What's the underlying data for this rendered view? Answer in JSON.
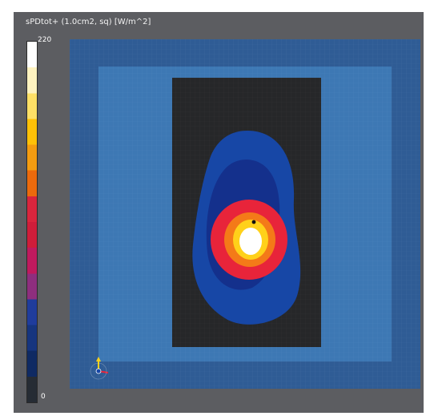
{
  "viewport": {
    "title": "sPDtot+ (1.0cm2, sq) [W/m^2]"
  },
  "colorbar": {
    "max_label": "220",
    "min_label": "0",
    "colors": [
      "#ffffff",
      "#fff3c0",
      "#ffe066",
      "#ffc107",
      "#f49c10",
      "#ec6a0c",
      "#d9253d",
      "#cf1d3a",
      "#c01a5e",
      "#8e2e7e",
      "#1f3c9c",
      "#16357f",
      "#0f2a63",
      "#262c34"
    ]
  },
  "colors": {
    "viewport_bg": "#5c5d61",
    "panel_outer": "#2f5c95",
    "panel_inner": "#3d78b4",
    "phantom": "#262729",
    "contour_outer": "#1747a6",
    "contour_mid": "#14308c",
    "contour_red": "#e8243a",
    "contour_orange": "#f47a18",
    "contour_yellow": "#ffd11a",
    "peak": "#ffffff"
  }
}
